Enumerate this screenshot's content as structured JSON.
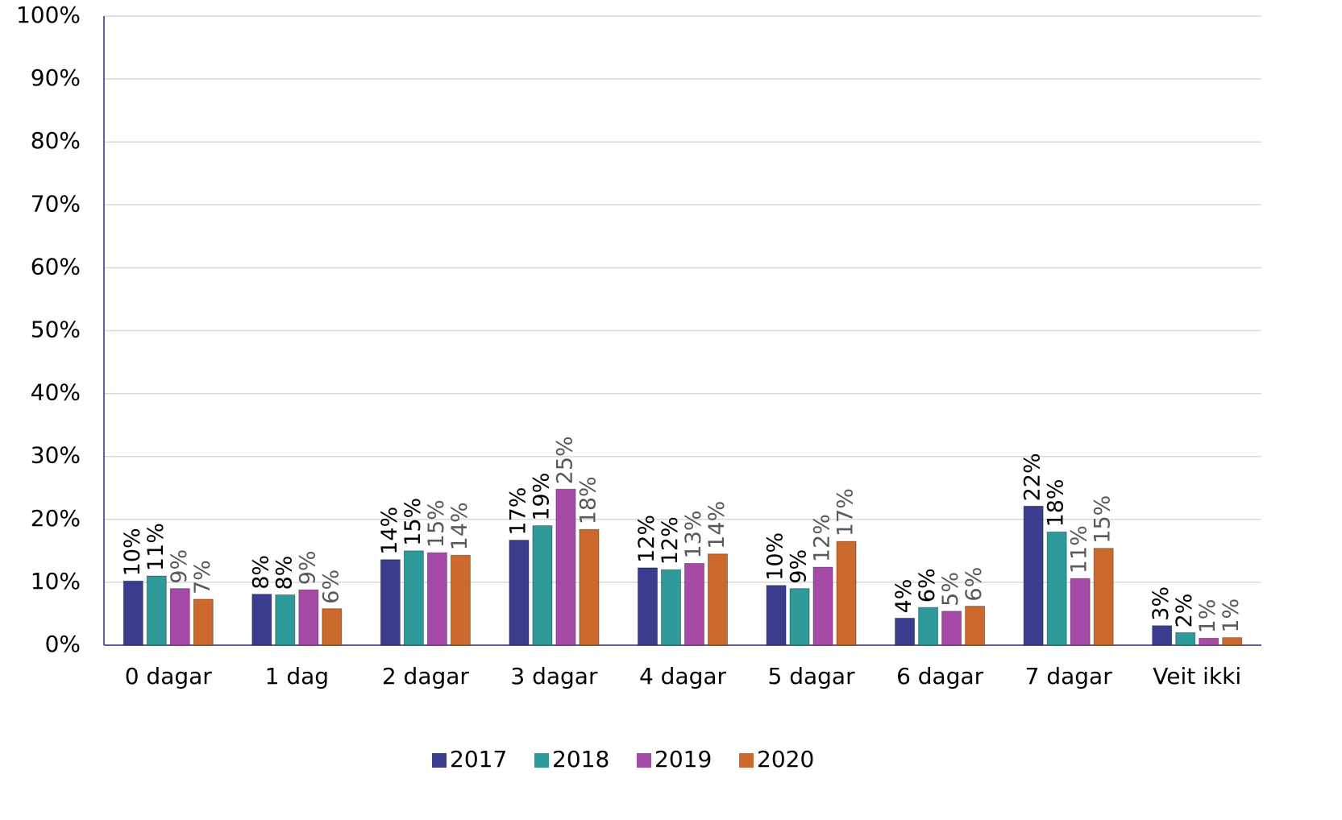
{
  "chart_data": {
    "type": "bar",
    "categories": [
      "0 dagar",
      "1 dag",
      "2 dagar",
      "3 dagar",
      "4 dagar",
      "5 dagar",
      "6 dagar",
      "7 dagar",
      "Veit ikki"
    ],
    "series": [
      {
        "name": "2017",
        "color": "#3c3c8e",
        "values": [
          10.2,
          8.1,
          13.6,
          16.7,
          12.3,
          9.5,
          4.3,
          22.1,
          3.1
        ],
        "value_labels": [
          "10%",
          "8%",
          "14%",
          "17%",
          "12%",
          "10%",
          "4%",
          "22%",
          "3%"
        ]
      },
      {
        "name": "2018",
        "color": "#2e9a9a",
        "values": [
          11.0,
          8.0,
          15.0,
          19.0,
          12.0,
          9.0,
          6.0,
          18.0,
          2.0
        ],
        "value_labels": [
          "11%",
          "8%",
          "15%",
          "19%",
          "12%",
          "9%",
          "6%",
          "18%",
          "2%"
        ]
      },
      {
        "name": "2019",
        "color": "#a64aa8",
        "values": [
          9.0,
          8.8,
          14.7,
          24.8,
          13.0,
          12.4,
          5.4,
          10.6,
          1.1
        ],
        "value_labels": [
          "9%",
          "9%",
          "15%",
          "25%",
          "13%",
          "12%",
          "5%",
          "11%",
          "1%"
        ]
      },
      {
        "name": "2020",
        "color": "#cc6a2e",
        "values": [
          7.3,
          5.8,
          14.3,
          18.4,
          14.5,
          16.5,
          6.2,
          15.4,
          1.2
        ],
        "value_labels": [
          "7%",
          "6%",
          "14%",
          "18%",
          "14%",
          "17%",
          "6%",
          "15%",
          "1%"
        ]
      }
    ],
    "ylim": [
      0,
      100
    ],
    "yticks": [
      {
        "value": 0,
        "label": "0%"
      },
      {
        "value": 10,
        "label": "10%"
      },
      {
        "value": 20,
        "label": "20%"
      },
      {
        "value": 30,
        "label": "30%"
      },
      {
        "value": 40,
        "label": "40%"
      },
      {
        "value": 50,
        "label": "50%"
      },
      {
        "value": 60,
        "label": "60%"
      },
      {
        "value": 70,
        "label": "70%"
      },
      {
        "value": 80,
        "label": "80%"
      },
      {
        "value": 90,
        "label": "90%"
      },
      {
        "value": 100,
        "label": "100%"
      }
    ],
    "grid": true,
    "legend": "bottom"
  }
}
